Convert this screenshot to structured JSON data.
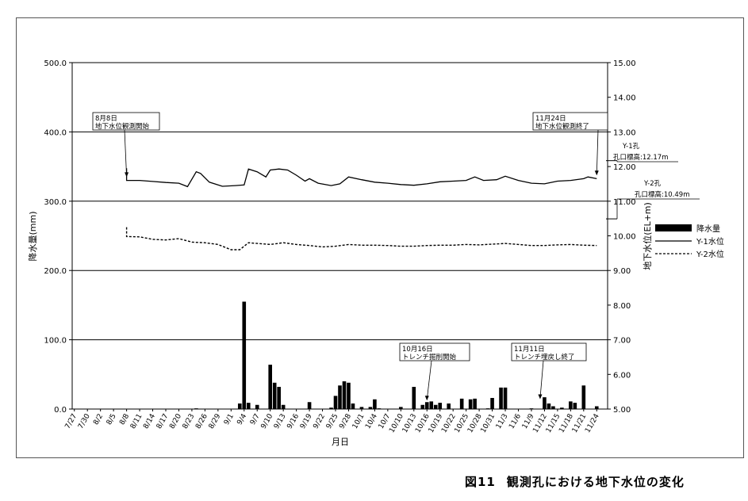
{
  "chart_data": {
    "type": "bar+line",
    "title": "",
    "xlabel": "月日",
    "ylabel_left": "降水量(mm)",
    "ylabel_right": "地下水位(EL+m)",
    "ylim_left": [
      0,
      500
    ],
    "ylim_right": [
      5,
      15
    ],
    "left_ticks": [
      "0.0",
      "100.0",
      "200.0",
      "300.0",
      "400.0",
      "500.0"
    ],
    "right_ticks": [
      "5.00",
      "6.00",
      "7.00",
      "8.00",
      "9.00",
      "10.00",
      "11.00",
      "12.00",
      "13.00",
      "14.00",
      "15.00"
    ],
    "grid": "horizontal at left-axis major ticks",
    "x_tick_labels": [
      "7/27",
      "7/30",
      "8/2",
      "8/5",
      "8/8",
      "8/11",
      "8/14",
      "8/17",
      "8/20",
      "8/23",
      "8/26",
      "8/29",
      "9/1",
      "9/4",
      "9/7",
      "9/10",
      "9/13",
      "9/16",
      "9/19",
      "9/22",
      "9/25",
      "9/28",
      "10/1",
      "10/4",
      "10/7",
      "10/10",
      "10/13",
      "10/16",
      "10/19",
      "10/22",
      "10/25",
      "10/28",
      "10/31",
      "11/3",
      "11/6",
      "11/9",
      "11/12",
      "11/15",
      "11/18",
      "11/21",
      "11/24"
    ],
    "start_date": "7/27",
    "legend": {
      "position": "right",
      "entries": [
        {
          "label": "降水量",
          "style": "bar"
        },
        {
          "label": "Y-1水位",
          "style": "solid"
        },
        {
          "label": "Y-2水位",
          "style": "dashed"
        }
      ]
    },
    "series": [
      {
        "name": "降水量",
        "type": "bar",
        "axis": "left",
        "points": [
          {
            "date": "8/24",
            "value": 1
          },
          {
            "date": "9/3",
            "value": 8
          },
          {
            "date": "9/4",
            "value": 155
          },
          {
            "date": "9/5",
            "value": 9
          },
          {
            "date": "9/7",
            "value": 6
          },
          {
            "date": "9/10",
            "value": 64
          },
          {
            "date": "9/11",
            "value": 38
          },
          {
            "date": "9/12",
            "value": 32
          },
          {
            "date": "9/13",
            "value": 6
          },
          {
            "date": "9/19",
            "value": 10
          },
          {
            "date": "9/24",
            "value": 2
          },
          {
            "date": "9/25",
            "value": 19
          },
          {
            "date": "9/26",
            "value": 34
          },
          {
            "date": "9/27",
            "value": 40
          },
          {
            "date": "9/28",
            "value": 38
          },
          {
            "date": "9/29",
            "value": 8
          },
          {
            "date": "10/1",
            "value": 3
          },
          {
            "date": "10/3",
            "value": 3
          },
          {
            "date": "10/4",
            "value": 14
          },
          {
            "date": "10/5",
            "value": 1
          },
          {
            "date": "10/10",
            "value": 3
          },
          {
            "date": "10/13",
            "value": 32
          },
          {
            "date": "10/15",
            "value": 6
          },
          {
            "date": "10/16",
            "value": 10
          },
          {
            "date": "10/17",
            "value": 11
          },
          {
            "date": "10/18",
            "value": 6
          },
          {
            "date": "10/19",
            "value": 9
          },
          {
            "date": "10/21",
            "value": 8
          },
          {
            "date": "10/24",
            "value": 15
          },
          {
            "date": "10/26",
            "value": 14
          },
          {
            "date": "10/27",
            "value": 15
          },
          {
            "date": "10/30",
            "value": 1
          },
          {
            "date": "10/31",
            "value": 16
          },
          {
            "date": "11/2",
            "value": 31
          },
          {
            "date": "11/3",
            "value": 31
          },
          {
            "date": "11/9",
            "value": 1
          },
          {
            "date": "11/12",
            "value": 17
          },
          {
            "date": "11/13",
            "value": 8
          },
          {
            "date": "11/14",
            "value": 4
          },
          {
            "date": "11/16",
            "value": 2
          },
          {
            "date": "11/18",
            "value": 11
          },
          {
            "date": "11/19",
            "value": 9
          },
          {
            "date": "11/21",
            "value": 34
          },
          {
            "date": "11/24",
            "value": 4
          }
        ]
      },
      {
        "name": "Y-1水位",
        "type": "line",
        "style": "solid",
        "axis": "right",
        "points": [
          {
            "date": "8/8",
            "value": 11.95
          },
          {
            "date": "8/8",
            "value": 11.6
          },
          {
            "date": "8/11",
            "value": 11.6
          },
          {
            "date": "8/14",
            "value": 11.57
          },
          {
            "date": "8/17",
            "value": 11.54
          },
          {
            "date": "8/20",
            "value": 11.52
          },
          {
            "date": "8/22",
            "value": 11.42
          },
          {
            "date": "8/24",
            "value": 11.85
          },
          {
            "date": "8/25",
            "value": 11.8
          },
          {
            "date": "8/27",
            "value": 11.55
          },
          {
            "date": "8/30",
            "value": 11.43
          },
          {
            "date": "9/2",
            "value": 11.45
          },
          {
            "date": "9/4",
            "value": 11.47
          },
          {
            "date": "9/5",
            "value": 11.93
          },
          {
            "date": "9/7",
            "value": 11.85
          },
          {
            "date": "9/9",
            "value": 11.7
          },
          {
            "date": "9/10",
            "value": 11.9
          },
          {
            "date": "9/12",
            "value": 11.93
          },
          {
            "date": "9/14",
            "value": 11.9
          },
          {
            "date": "9/16",
            "value": 11.75
          },
          {
            "date": "9/18",
            "value": 11.58
          },
          {
            "date": "9/19",
            "value": 11.65
          },
          {
            "date": "9/21",
            "value": 11.52
          },
          {
            "date": "9/24",
            "value": 11.45
          },
          {
            "date": "9/26",
            "value": 11.5
          },
          {
            "date": "9/28",
            "value": 11.7
          },
          {
            "date": "10/1",
            "value": 11.62
          },
          {
            "date": "10/4",
            "value": 11.55
          },
          {
            "date": "10/7",
            "value": 11.52
          },
          {
            "date": "10/10",
            "value": 11.48
          },
          {
            "date": "10/13",
            "value": 11.46
          },
          {
            "date": "10/16",
            "value": 11.5
          },
          {
            "date": "10/19",
            "value": 11.56
          },
          {
            "date": "10/22",
            "value": 11.58
          },
          {
            "date": "10/25",
            "value": 11.6
          },
          {
            "date": "10/27",
            "value": 11.7
          },
          {
            "date": "10/29",
            "value": 11.6
          },
          {
            "date": "11/1",
            "value": 11.62
          },
          {
            "date": "11/3",
            "value": 11.72
          },
          {
            "date": "11/6",
            "value": 11.6
          },
          {
            "date": "11/9",
            "value": 11.52
          },
          {
            "date": "11/12",
            "value": 11.5
          },
          {
            "date": "11/15",
            "value": 11.58
          },
          {
            "date": "11/18",
            "value": 11.6
          },
          {
            "date": "11/21",
            "value": 11.65
          },
          {
            "date": "11/22",
            "value": 11.7
          },
          {
            "date": "11/24",
            "value": 11.65
          }
        ]
      },
      {
        "name": "Y-2水位",
        "type": "line",
        "style": "dashed",
        "axis": "right",
        "points": [
          {
            "date": "8/8",
            "value": 10.25
          },
          {
            "date": "8/8",
            "value": 9.98
          },
          {
            "date": "8/11",
            "value": 9.97
          },
          {
            "date": "8/14",
            "value": 9.9
          },
          {
            "date": "8/17",
            "value": 9.88
          },
          {
            "date": "8/20",
            "value": 9.92
          },
          {
            "date": "8/23",
            "value": 9.82
          },
          {
            "date": "8/26",
            "value": 9.8
          },
          {
            "date": "8/29",
            "value": 9.75
          },
          {
            "date": "9/1",
            "value": 9.6
          },
          {
            "date": "9/3",
            "value": 9.6
          },
          {
            "date": "9/5",
            "value": 9.8
          },
          {
            "date": "9/7",
            "value": 9.78
          },
          {
            "date": "9/10",
            "value": 9.75
          },
          {
            "date": "9/13",
            "value": 9.8
          },
          {
            "date": "9/16",
            "value": 9.75
          },
          {
            "date": "9/19",
            "value": 9.72
          },
          {
            "date": "9/22",
            "value": 9.68
          },
          {
            "date": "9/25",
            "value": 9.7
          },
          {
            "date": "9/28",
            "value": 9.75
          },
          {
            "date": "10/1",
            "value": 9.73
          },
          {
            "date": "10/4",
            "value": 9.73
          },
          {
            "date": "10/7",
            "value": 9.72
          },
          {
            "date": "10/10",
            "value": 9.7
          },
          {
            "date": "10/13",
            "value": 9.7
          },
          {
            "date": "10/16",
            "value": 9.72
          },
          {
            "date": "10/19",
            "value": 9.73
          },
          {
            "date": "10/22",
            "value": 9.73
          },
          {
            "date": "10/25",
            "value": 9.75
          },
          {
            "date": "10/28",
            "value": 9.74
          },
          {
            "date": "10/31",
            "value": 9.76
          },
          {
            "date": "11/3",
            "value": 9.78
          },
          {
            "date": "11/6",
            "value": 9.75
          },
          {
            "date": "11/9",
            "value": 9.72
          },
          {
            "date": "11/12",
            "value": 9.72
          },
          {
            "date": "11/15",
            "value": 9.74
          },
          {
            "date": "11/18",
            "value": 9.75
          },
          {
            "date": "11/21",
            "value": 9.73
          },
          {
            "date": "11/24",
            "value": 9.72
          }
        ]
      }
    ],
    "annotations": [
      {
        "lines": [
          "8月8日",
          "地下水位観測開始"
        ],
        "date": "8/8",
        "target_value_right": 11.65
      },
      {
        "lines": [
          "11月24日",
          "地下水位観測終了"
        ],
        "date": "11/24",
        "target_value_right": 11.7
      },
      {
        "lines": [
          "10月16日",
          "トレンチ掘削開始"
        ],
        "date": "10/16",
        "target_value_left": 10
      },
      {
        "lines": [
          "11月11日",
          "トレンチ埋戻し終了"
        ],
        "date": "11/11",
        "target_value_left": 12
      }
    ],
    "right_markers": [
      {
        "lines": [
          "Y-1孔",
          "孔口標高:12.17m"
        ],
        "value": 12.17
      },
      {
        "lines": [
          "Y-2孔",
          "孔口標高:10.49m"
        ],
        "value": 10.49
      }
    ]
  },
  "caption": {
    "number": "図11",
    "text": "観測孔における地下水位の変化"
  }
}
